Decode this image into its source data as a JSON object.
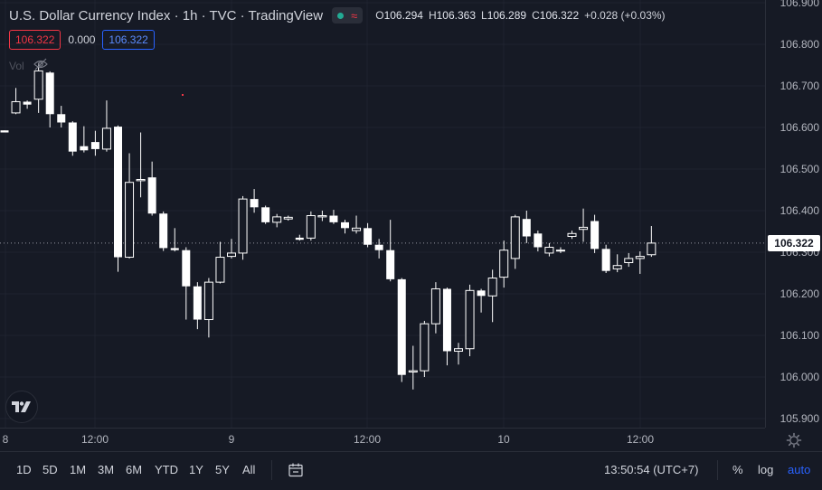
{
  "header": {
    "title": "U.S. Dollar Currency Index · 1h · TVC · TradingView",
    "wave_glyph": "≈",
    "ohlc": {
      "o_label": "O",
      "o_value": "106.294",
      "h_label": "H",
      "h_value": "106.363",
      "l_label": "L",
      "l_value": "106.289",
      "c_label": "C",
      "c_value": "106.322",
      "change": "+0.028 (+0.03%)"
    }
  },
  "price_boxes": {
    "bid": "106.322",
    "spread": "0.000",
    "ask": "106.322"
  },
  "volume_label": "Vol",
  "price_axis": {
    "ticks": [
      "106.900",
      "106.800",
      "106.700",
      "106.600",
      "106.500",
      "106.400",
      "106.300",
      "106.200",
      "106.100",
      "106.000",
      "105.900"
    ],
    "current": "106.322"
  },
  "time_axis": {
    "ticks": [
      "8",
      "12:00",
      "9",
      "12:00",
      "10",
      "12:00"
    ]
  },
  "bottom_bar": {
    "ranges": [
      "1D",
      "5D",
      "1M",
      "3M",
      "6M",
      "YTD",
      "1Y",
      "5Y",
      "All"
    ],
    "clock": "13:50:54 (UTC+7)",
    "percent": "%",
    "log": "log",
    "auto": "auto"
  },
  "colors": {
    "background": "#161a25",
    "candle": "#ffffff",
    "grid": "#1f2330",
    "accent": "#2962ff",
    "down_marker": "#f23645",
    "status_dot": "#22ab94"
  },
  "chart_data": {
    "type": "candlestick",
    "ylim": [
      105.9,
      106.9
    ],
    "x_ticks": [
      "8",
      "12:00",
      "9",
      "12:00",
      "10",
      "12:00"
    ],
    "candles": [
      {
        "o": 106.593,
        "h": 106.593,
        "l": 106.588,
        "c": 106.588
      },
      {
        "o": 106.635,
        "h": 106.695,
        "l": 106.632,
        "c": 106.662
      },
      {
        "o": 106.662,
        "h": 106.665,
        "l": 106.645,
        "c": 106.655
      },
      {
        "o": 106.668,
        "h": 106.755,
        "l": 106.635,
        "c": 106.736
      },
      {
        "o": 106.732,
        "h": 106.735,
        "l": 106.6,
        "c": 106.632
      },
      {
        "o": 106.632,
        "h": 106.652,
        "l": 106.6,
        "c": 106.612
      },
      {
        "o": 106.612,
        "h": 106.615,
        "l": 106.532,
        "c": 106.542
      },
      {
        "o": 106.555,
        "h": 106.603,
        "l": 106.54,
        "c": 106.545
      },
      {
        "o": 106.565,
        "h": 106.592,
        "l": 106.532,
        "c": 106.548
      },
      {
        "o": 106.548,
        "h": 106.665,
        "l": 106.542,
        "c": 106.598
      },
      {
        "o": 106.602,
        "h": 106.605,
        "l": 106.253,
        "c": 106.288
      },
      {
        "o": 106.288,
        "h": 106.538,
        "l": 106.285,
        "c": 106.468
      },
      {
        "o": 106.472,
        "h": 106.588,
        "l": 106.432,
        "c": 106.475
      },
      {
        "o": 106.48,
        "h": 106.518,
        "l": 106.388,
        "c": 106.393
      },
      {
        "o": 106.393,
        "h": 106.398,
        "l": 106.303,
        "c": 106.31
      },
      {
        "o": 106.31,
        "h": 106.358,
        "l": 106.302,
        "c": 106.305
      },
      {
        "o": 106.305,
        "h": 106.312,
        "l": 106.138,
        "c": 106.218
      },
      {
        "o": 106.218,
        "h": 106.228,
        "l": 106.115,
        "c": 106.138
      },
      {
        "o": 106.138,
        "h": 106.238,
        "l": 106.095,
        "c": 106.228
      },
      {
        "o": 106.228,
        "h": 106.325,
        "l": 106.225,
        "c": 106.288
      },
      {
        "o": 106.29,
        "h": 106.332,
        "l": 106.285,
        "c": 106.298
      },
      {
        "o": 106.298,
        "h": 106.435,
        "l": 106.282,
        "c": 106.428
      },
      {
        "o": 106.428,
        "h": 106.452,
        "l": 106.395,
        "c": 106.408
      },
      {
        "o": 106.408,
        "h": 106.412,
        "l": 106.368,
        "c": 106.372
      },
      {
        "o": 106.372,
        "h": 106.392,
        "l": 106.36,
        "c": 106.385
      },
      {
        "o": 106.38,
        "h": 106.388,
        "l": 106.376,
        "c": 106.384
      },
      {
        "o": 106.335,
        "h": 106.342,
        "l": 106.328,
        "c": 106.33
      },
      {
        "o": 106.334,
        "h": 106.398,
        "l": 106.328,
        "c": 106.388
      },
      {
        "o": 106.385,
        "h": 106.4,
        "l": 106.375,
        "c": 106.388
      },
      {
        "o": 106.388,
        "h": 106.402,
        "l": 106.368,
        "c": 106.372
      },
      {
        "o": 106.372,
        "h": 106.378,
        "l": 106.345,
        "c": 106.358
      },
      {
        "o": 106.352,
        "h": 106.388,
        "l": 106.345,
        "c": 106.358
      },
      {
        "o": 106.358,
        "h": 106.37,
        "l": 106.312,
        "c": 106.318
      },
      {
        "o": 106.318,
        "h": 106.332,
        "l": 106.285,
        "c": 106.305
      },
      {
        "o": 106.305,
        "h": 106.378,
        "l": 106.23,
        "c": 106.235
      },
      {
        "o": 106.235,
        "h": 106.238,
        "l": 105.988,
        "c": 106.005
      },
      {
        "o": 106.012,
        "h": 106.075,
        "l": 105.97,
        "c": 106.015
      },
      {
        "o": 106.015,
        "h": 106.135,
        "l": 106.0,
        "c": 106.128
      },
      {
        "o": 106.128,
        "h": 106.228,
        "l": 106.105,
        "c": 106.212
      },
      {
        "o": 106.212,
        "h": 106.215,
        "l": 106.028,
        "c": 106.062
      },
      {
        "o": 106.062,
        "h": 106.082,
        "l": 106.03,
        "c": 106.068
      },
      {
        "o": 106.068,
        "h": 106.222,
        "l": 106.05,
        "c": 106.208
      },
      {
        "o": 106.208,
        "h": 106.212,
        "l": 106.155,
        "c": 106.195
      },
      {
        "o": 106.195,
        "h": 106.258,
        "l": 106.132,
        "c": 106.238
      },
      {
        "o": 106.24,
        "h": 106.328,
        "l": 106.215,
        "c": 106.305
      },
      {
        "o": 106.285,
        "h": 106.39,
        "l": 106.26,
        "c": 106.385
      },
      {
        "o": 106.38,
        "h": 106.4,
        "l": 106.322,
        "c": 106.338
      },
      {
        "o": 106.345,
        "h": 106.352,
        "l": 106.302,
        "c": 106.312
      },
      {
        "o": 106.298,
        "h": 106.322,
        "l": 106.29,
        "c": 106.312
      },
      {
        "o": 106.305,
        "h": 106.312,
        "l": 106.298,
        "c": 106.305
      },
      {
        "o": 106.338,
        "h": 106.352,
        "l": 106.332,
        "c": 106.345
      },
      {
        "o": 106.355,
        "h": 106.405,
        "l": 106.325,
        "c": 106.36
      },
      {
        "o": 106.375,
        "h": 106.39,
        "l": 106.298,
        "c": 106.308
      },
      {
        "o": 106.308,
        "h": 106.318,
        "l": 106.25,
        "c": 106.255
      },
      {
        "o": 106.26,
        "h": 106.295,
        "l": 106.252,
        "c": 106.268
      },
      {
        "o": 106.275,
        "h": 106.298,
        "l": 106.265,
        "c": 106.285
      },
      {
        "o": 106.285,
        "h": 106.302,
        "l": 106.248,
        "c": 106.29
      },
      {
        "o": 106.294,
        "h": 106.363,
        "l": 106.289,
        "c": 106.322
      }
    ]
  }
}
